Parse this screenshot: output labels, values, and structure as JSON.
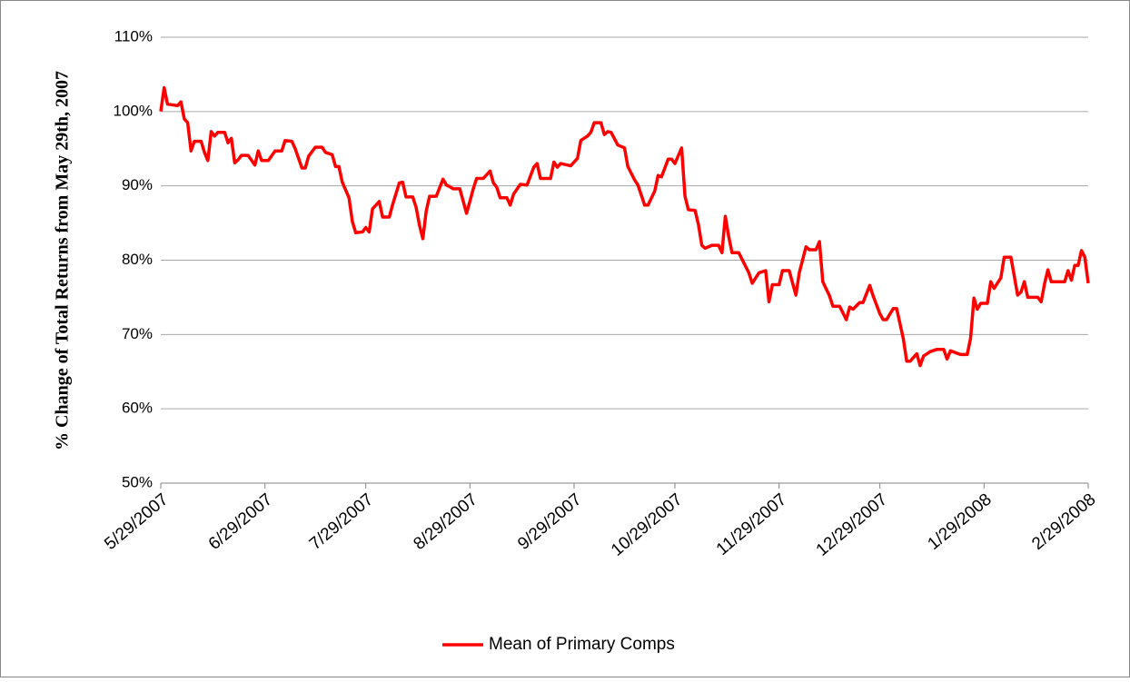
{
  "chart_data": {
    "type": "line",
    "y_label": "% Change of Total Returns from May 29th, 2007",
    "x": [
      "5/29/2007",
      "5/30/2007",
      "5/31/2007",
      "6/3/2007",
      "6/4/2007",
      "6/5/2007",
      "6/6/2007",
      "6/7/2007",
      "6/8/2007",
      "6/10/2007",
      "6/11/2007",
      "6/12/2007",
      "6/13/2007",
      "6/14/2007",
      "6/15/2007",
      "6/17/2007",
      "6/18/2007",
      "6/19/2007",
      "6/20/2007",
      "6/21/2007",
      "6/22/2007",
      "6/24/2007",
      "6/26/2007",
      "6/27/2007",
      "6/28/2007",
      "6/30/2007",
      "7/2/2007",
      "7/4/2007",
      "7/5/2007",
      "7/7/2007",
      "7/8/2007",
      "7/10/2007",
      "7/11/2007",
      "7/12/2007",
      "7/14/2007",
      "7/16/2007",
      "7/17/2007",
      "7/19/2007",
      "7/20/2007",
      "7/21/2007",
      "7/22/2007",
      "7/24/2007",
      "7/25/2007",
      "7/26/2007",
      "7/28/2007",
      "7/29/2007",
      "7/30/2007",
      "7/31/2007",
      "8/2/2007",
      "8/3/2007",
      "8/5/2007",
      "8/6/2007",
      "8/8/2007",
      "8/9/2007",
      "8/10/2007",
      "8/12/2007",
      "8/13/2007",
      "8/14/2007",
      "8/15/2007",
      "8/16/2007",
      "8/17/2007",
      "8/19/2007",
      "8/21/2007",
      "8/22/2007",
      "8/23/2007",
      "8/24/2007",
      "8/26/2007",
      "8/28/2007",
      "8/29/2007",
      "8/30/2007",
      "8/31/2007",
      "9/2/2007",
      "9/4/2007",
      "9/5/2007",
      "9/6/2007",
      "9/7/2007",
      "9/9/2007",
      "9/10/2007",
      "9/11/2007",
      "9/13/2007",
      "9/15/2007",
      "9/17/2007",
      "9/18/2007",
      "9/19/2007",
      "9/22/2007",
      "9/23/2007",
      "9/24/2007",
      "9/25/2007",
      "9/28/2007",
      "9/30/2007",
      "10/1/2007",
      "10/3/2007",
      "10/4/2007",
      "10/5/2007",
      "10/7/2007",
      "10/8/2007",
      "10/9/2007",
      "10/10/2007",
      "10/12/2007",
      "10/14/2007",
      "10/15/2007",
      "10/17/2007",
      "10/18/2007",
      "10/20/2007",
      "10/21/2007",
      "10/23/2007",
      "10/24/2007",
      "10/25/2007",
      "10/27/2007",
      "10/28/2007",
      "10/29/2007",
      "10/31/2007",
      "11/1/2007",
      "11/2/2007",
      "11/4/2007",
      "11/5/2007",
      "11/6/2007",
      "11/7/2007",
      "11/9/2007",
      "11/11/2007",
      "11/12/2007",
      "11/13/2007",
      "11/14/2007",
      "11/15/2007",
      "11/17/2007",
      "11/20/2007",
      "11/21/2007",
      "11/23/2007",
      "11/25/2007",
      "11/26/2007",
      "11/27/2007",
      "11/29/2007",
      "11/30/2007",
      "12/2/2007",
      "12/4/2007",
      "12/5/2007",
      "12/7/2007",
      "12/8/2007",
      "12/10/2007",
      "12/11/2007",
      "12/12/2007",
      "12/14/2007",
      "12/15/2007",
      "12/17/2007",
      "12/19/2007",
      "12/20/2007",
      "12/21/2007",
      "12/23/2007",
      "12/24/2007",
      "12/26/2007",
      "12/27/2007",
      "12/29/2007",
      "12/30/2007",
      "12/31/2007",
      "1/2/2008",
      "1/3/2008",
      "1/5/2008",
      "1/6/2008",
      "1/7/2008",
      "1/9/2008",
      "1/10/2008",
      "1/11/2008",
      "1/13/2008",
      "1/15/2008",
      "1/17/2008",
      "1/18/2008",
      "1/19/2008",
      "1/22/2008",
      "1/24/2008",
      "1/25/2008",
      "1/26/2008",
      "1/27/2008",
      "1/28/2008",
      "1/30/2008",
      "1/31/2008",
      "2/1/2008",
      "2/3/2008",
      "2/4/2008",
      "2/6/2008",
      "2/8/2008",
      "2/9/2008",
      "2/10/2008",
      "2/11/2008",
      "2/14/2008",
      "2/15/2008",
      "2/16/2008",
      "2/17/2008",
      "2/18/2008",
      "2/22/2008",
      "2/23/2008",
      "2/24/2008",
      "2/25/2008",
      "2/26/2008",
      "2/27/2008",
      "2/28/2008",
      "2/29/2008"
    ],
    "series": [
      {
        "name": "Mean of Primary Comps",
        "color": "#ff0000",
        "values": [
          100,
          103.2,
          101,
          100.8,
          101.3,
          99,
          98.5,
          94.7,
          96,
          96,
          94.5,
          93.4,
          97.3,
          96.7,
          97.2,
          97.2,
          95.8,
          96.4,
          93.1,
          93.5,
          94.1,
          94.1,
          92.8,
          94.7,
          93.4,
          93.4,
          94.7,
          94.7,
          96.1,
          96,
          95,
          92.4,
          92.4,
          94,
          95.2,
          95.2,
          94.5,
          94.2,
          92.6,
          92.6,
          90.5,
          88.4,
          85.2,
          83.7,
          83.8,
          84.4,
          83.8,
          86.9,
          87.9,
          85.8,
          85.8,
          87.5,
          90.4,
          90.5,
          88.5,
          88.5,
          87.1,
          84.7,
          82.9,
          86.6,
          88.6,
          88.6,
          90.9,
          90.1,
          89.9,
          89.6,
          89.6,
          86.3,
          87.9,
          89.6,
          91,
          91,
          92,
          90.4,
          89.8,
          88.4,
          88.4,
          87.4,
          88.9,
          90.2,
          90.1,
          92.5,
          93,
          91,
          91,
          93.2,
          92.5,
          93,
          92.7,
          93.7,
          96.1,
          96.7,
          97.2,
          98.5,
          98.5,
          96.9,
          97.3,
          97.2,
          95.5,
          95.1,
          92.6,
          90.8,
          90.1,
          87.4,
          87.4,
          89.3,
          91.4,
          91.2,
          93.6,
          93.6,
          93,
          95.1,
          88.6,
          86.8,
          86.7,
          84.8,
          82,
          81.6,
          82,
          82,
          81,
          85.9,
          83.2,
          81,
          81,
          78.3,
          76.9,
          78.3,
          78.6,
          74.4,
          76.7,
          76.7,
          78.6,
          78.6,
          75.3,
          78.3,
          81.8,
          81.4,
          81.4,
          82.5,
          77.1,
          75.2,
          73.8,
          73.8,
          72,
          73.7,
          73.4,
          74.3,
          74.3,
          76.6,
          75.2,
          72.8,
          72,
          72,
          73.5,
          73.5,
          69.4,
          66.4,
          66.4,
          67.4,
          65.8,
          67.1,
          67.7,
          68,
          68,
          66.7,
          67.8,
          67.3,
          67.3,
          69.5,
          74.9,
          73.4,
          74.2,
          74.2,
          77.1,
          76.2,
          77.6,
          80.4,
          80.4,
          75.3,
          75.7,
          77.1,
          75,
          75,
          74.4,
          76.8,
          78.7,
          77.1,
          77.1,
          78.6,
          77.3,
          79.3,
          79.3,
          81.3,
          80.4,
          76.9
        ]
      }
    ],
    "xlim": [
      "5/29/2007",
      "2/29/2008"
    ],
    "xticks": [
      "5/29/2007",
      "6/29/2007",
      "7/29/2007",
      "8/29/2007",
      "9/29/2007",
      "10/29/2007",
      "11/29/2007",
      "12/29/2007",
      "1/29/2008",
      "2/29/2008"
    ],
    "ylim": [
      50,
      110
    ],
    "yticks": [
      {
        "value": 50,
        "label": "50%"
      },
      {
        "value": 60,
        "label": "60%"
      },
      {
        "value": 70,
        "label": "70%"
      },
      {
        "value": 80,
        "label": "80%"
      },
      {
        "value": 90,
        "label": "90%"
      },
      {
        "value": 100,
        "label": "100%"
      },
      {
        "value": 110,
        "label": "110%"
      }
    ],
    "grid": true,
    "legend": "bottom"
  }
}
